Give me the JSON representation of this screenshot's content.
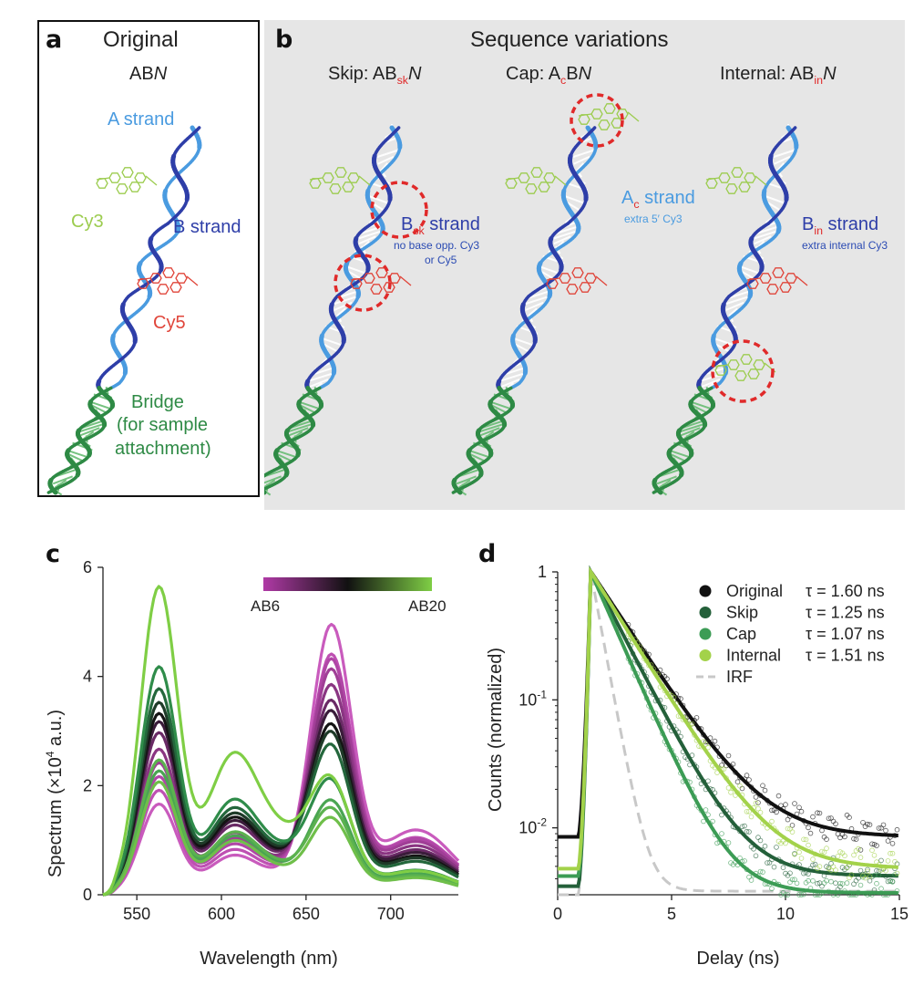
{
  "panel_a": {
    "label": "a",
    "title": "Original",
    "subtitle_prefix": "AB",
    "subtitle_italic": "N",
    "a_strand": "A strand",
    "b_strand": "B strand",
    "cy3": "Cy3",
    "cy5": "Cy5",
    "bridge": "Bridge",
    "bridge_note1": "(for sample",
    "bridge_note2": "attachment)"
  },
  "panel_b": {
    "label": "b",
    "title": "Sequence variations",
    "skip": {
      "title_prefix": "Skip: AB",
      "title_sub": "sk",
      "title_italic": "N",
      "strand_prefix": "B",
      "strand_sub": "sk",
      "strand_suffix": " strand",
      "note1": "no base opp. Cy3",
      "note2": "or Cy5"
    },
    "cap": {
      "title_prefix": "Cap: A",
      "title_sub": "c",
      "title_suffix": "B",
      "title_italic": "N",
      "strand_prefix": "A",
      "strand_sub": "c",
      "strand_suffix": " strand",
      "note1": "extra 5′ Cy3"
    },
    "internal": {
      "title_prefix": "Internal: AB",
      "title_sub": "in",
      "title_italic": "N",
      "strand_prefix": "B",
      "strand_sub": "in",
      "strand_suffix": " strand",
      "note1": "extra internal Cy3"
    }
  },
  "colors": {
    "a_strand": "#4a9be0",
    "b_strand": "#2e3ea8",
    "bridge": "#2e8a45",
    "cy3": "#9ccc4f",
    "cy5": "#e0453a",
    "highlight": "#e02a2a"
  },
  "chart_data": [
    {
      "panel": "c",
      "type": "line",
      "xlabel": "Wavelength (nm)",
      "ylabel_prefix": "Spectrum (×10",
      "ylabel_sup": "4",
      "ylabel_suffix": " a.u.)",
      "xlim": [
        530,
        740
      ],
      "ylim": [
        0,
        6
      ],
      "xticks": [
        550,
        600,
        650,
        700
      ],
      "yticks": [
        0,
        2,
        4,
        6
      ],
      "colorbar": {
        "from_label": "AB6",
        "to_label": "AB20",
        "from_color": "#b03aa6",
        "mid_color": "#111111",
        "to_color": "#7fce45"
      },
      "series": [
        {
          "color": "#c95bbd",
          "p1": 1.65,
          "p2": 4.75,
          "s": 0.4
        },
        {
          "color": "#be50b2",
          "p1": 1.9,
          "p2": 4.2,
          "s": 0.45
        },
        {
          "color": "#b046a6",
          "p1": 2.15,
          "p2": 4.1,
          "s": 0.5
        },
        {
          "color": "#a03e96",
          "p1": 2.4,
          "p2": 3.9,
          "s": 0.55
        },
        {
          "color": "#8a3582",
          "p1": 2.65,
          "p2": 3.6,
          "s": 0.6
        },
        {
          "color": "#6a2a66",
          "p1": 2.95,
          "p2": 3.3,
          "s": 0.68
        },
        {
          "color": "#3a1c3a",
          "p1": 3.15,
          "p2": 3.1,
          "s": 0.72
        },
        {
          "color": "#141414",
          "p1": 3.3,
          "p2": 2.85,
          "s": 0.75
        },
        {
          "color": "#1e3b28",
          "p1": 3.5,
          "p2": 2.7,
          "s": 0.78
        },
        {
          "color": "#24673c",
          "p1": 3.75,
          "p2": 2.45,
          "s": 0.82
        },
        {
          "color": "#2f8c4a",
          "p1": 4.15,
          "p2": 1.8,
          "s": 0.88
        },
        {
          "color": "#4aa552",
          "p1": 2.25,
          "p2": 1.55,
          "s": 0.7
        },
        {
          "color": "#5cb24f",
          "p1": 2.45,
          "p2": 1.4,
          "s": 0.72
        },
        {
          "color": "#6fbf4a",
          "p1": 2.05,
          "p2": 1.25,
          "s": 0.65
        },
        {
          "color": "#7fce45",
          "p1": 5.6,
          "p2": 1.75,
          "s": 1.6
        }
      ]
    },
    {
      "panel": "d",
      "type": "line",
      "xlabel": "Delay (ns)",
      "ylabel": "Counts (normalized)",
      "xlim": [
        0,
        15
      ],
      "ylim": [
        0.003,
        1
      ],
      "yscale": "log",
      "xticks": [
        0,
        5,
        10,
        15
      ],
      "ytick_labels": [
        {
          "mant": "10",
          "sup": "-2",
          "v": 0.01
        },
        {
          "mant": "10",
          "sup": "-1",
          "v": 0.1
        },
        {
          "mant": "1",
          "sup": "",
          "v": 1
        }
      ],
      "series": [
        {
          "name": "Original",
          "tau_label": "τ = 1.60 ns",
          "tau": 1.6,
          "base": 0.0085,
          "pre": 0.0085,
          "color": "#111111"
        },
        {
          "name": "Skip",
          "tau_label": "τ = 1.25 ns",
          "tau": 1.25,
          "base": 0.0042,
          "pre": 0.0035,
          "color": "#24603a"
        },
        {
          "name": "Cap",
          "tau_label": "τ = 1.07 ns",
          "tau": 1.07,
          "base": 0.0031,
          "pre": 0.0042,
          "color": "#3c9c55"
        },
        {
          "name": "Internal",
          "tau_label": "τ = 1.51 ns",
          "tau": 1.51,
          "base": 0.0048,
          "pre": 0.0048,
          "color": "#a3d24a"
        },
        {
          "name": "IRF",
          "tau_label": "",
          "tau": 0.45,
          "base": 0.0032,
          "pre": 0.003,
          "color": "#c8c8c8",
          "dashed": true
        }
      ]
    }
  ]
}
